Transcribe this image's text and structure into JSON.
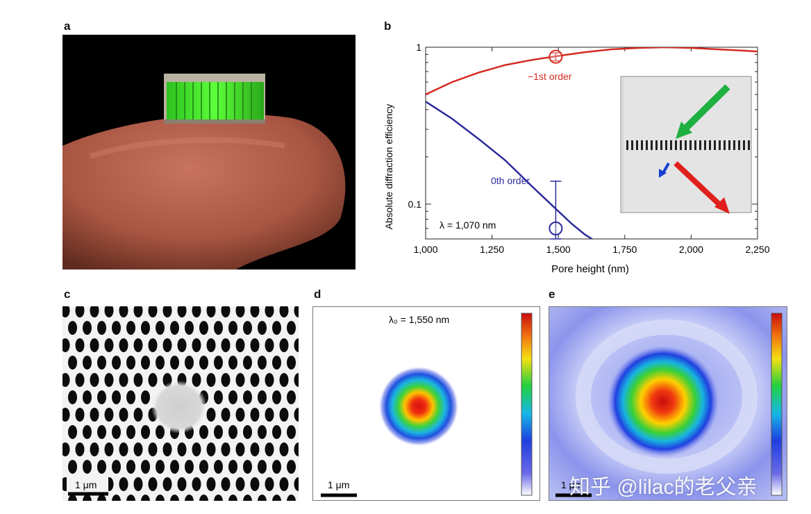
{
  "panel_labels": {
    "a": "a",
    "b": "b",
    "c": "c",
    "d": "d",
    "e": "e"
  },
  "chart_data": {
    "type": "line",
    "xlabel": "Pore height (nm)",
    "ylabel": "Absolute diffraction efficiency",
    "yscale": "log",
    "xlim": [
      1000,
      2250
    ],
    "ylim": [
      0.06,
      1
    ],
    "x_ticks": [
      "1,000",
      "1,250",
      "1,500",
      "1,750",
      "2,000",
      "2,250"
    ],
    "y_ticks": [
      "0.1",
      "1"
    ],
    "annotation": "λ = 1,070 nm",
    "series": [
      {
        "name": "−1st order",
        "color": "#d42a20",
        "x": [
          1000,
          1100,
          1200,
          1300,
          1400,
          1500,
          1600,
          1700,
          1800,
          1900,
          2000,
          2100,
          2200,
          2250
        ],
        "y": [
          0.5,
          0.6,
          0.69,
          0.77,
          0.83,
          0.88,
          0.93,
          0.97,
          0.99,
          1.0,
          0.99,
          0.97,
          0.95,
          0.94
        ]
      },
      {
        "name": "0th order",
        "color": "#2a2a9a",
        "x": [
          1000,
          1100,
          1200,
          1300,
          1400,
          1500,
          1550,
          1600,
          1640
        ],
        "y": [
          0.45,
          0.35,
          0.26,
          0.19,
          0.13,
          0.09,
          0.075,
          0.064,
          0.058
        ]
      }
    ],
    "measurements": [
      {
        "series": "−1st order",
        "x": 1490,
        "y": 0.87,
        "err_low": 0.82,
        "err_high": 0.92
      },
      {
        "series": "0th order",
        "x": 1490,
        "y": 0.07,
        "err_low": 0.06,
        "err_high": 0.14
      }
    ]
  },
  "panel_d": {
    "wavelength": "λ₀ = 1,550 nm",
    "scalebar": "1 μm"
  },
  "panel_c": {
    "scalebar": "1 μm"
  },
  "panel_e": {
    "scalebar": "1 μm"
  },
  "watermark": "知乎 @lilac的老父亲"
}
